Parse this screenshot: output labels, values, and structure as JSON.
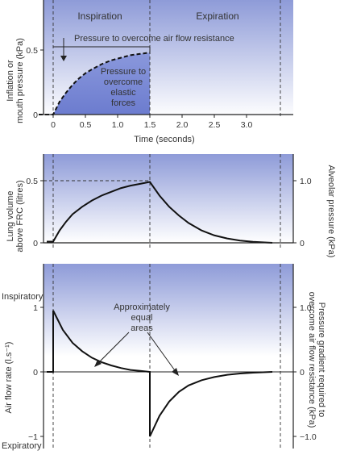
{
  "colors": {
    "band": "#9aa6dc",
    "fill": "#7f8fd6",
    "line": "#111111"
  },
  "chart_data": [
    {
      "type": "area",
      "header_labels": [
        "Inspiration",
        "Expiration"
      ],
      "xlabel": "Time (seconds)",
      "ylabel": "Inflation or mouth pressure (kPa)",
      "xticks": [
        "0",
        "0.5",
        "1.0",
        "1.5",
        "2.0",
        "2.5",
        "3.0"
      ],
      "yticks": [
        "0",
        "0.5"
      ],
      "xlim": [
        -0.1,
        3.4
      ],
      "ylim": [
        0,
        0.5
      ],
      "annotations": [
        "Pressure to overcome air flow resistance",
        "Pressure to overcome elastic forces"
      ],
      "series": [
        {
          "x": [
            0,
            0.1,
            0.2,
            0.3,
            0.4,
            0.5,
            0.6,
            0.75,
            0.9,
            1.05,
            1.2,
            1.35,
            1.5
          ],
          "y": [
            0,
            0.1,
            0.17,
            0.23,
            0.28,
            0.32,
            0.35,
            0.39,
            0.42,
            0.44,
            0.46,
            0.47,
            0.48
          ]
        }
      ]
    },
    {
      "type": "line",
      "ylabel": "Lung volume above FRC (litres)",
      "ylabel_right": "Alveolar pressure (kPa)",
      "yticks": [
        "0",
        "0.5"
      ],
      "yticks_right": [
        "0",
        "1.0"
      ],
      "ylim": [
        0,
        0.5
      ],
      "series": [
        {
          "x": [
            -0.1,
            0,
            0.1,
            0.2,
            0.3,
            0.45,
            0.6,
            0.75,
            0.9,
            1.05,
            1.2,
            1.35,
            1.5,
            1.65,
            1.8,
            1.95,
            2.1,
            2.3,
            2.5,
            2.7,
            2.9,
            3.1,
            3.4
          ],
          "y": [
            0.01,
            0.01,
            0.1,
            0.17,
            0.23,
            0.29,
            0.34,
            0.38,
            0.41,
            0.44,
            0.46,
            0.475,
            0.49,
            0.38,
            0.29,
            0.22,
            0.16,
            0.1,
            0.06,
            0.035,
            0.018,
            0.008,
            0.0
          ]
        }
      ]
    },
    {
      "type": "line",
      "ylabel": "Air flow rate (l.s⁻¹)",
      "ylabel_right": "Pressure gradient required to overcome air flow resistance (kPa)",
      "yticks": [
        "1",
        "0",
        "−1"
      ],
      "yticks_right": [
        "1.0",
        "0",
        "−1.0"
      ],
      "ylim": [
        -1,
        1
      ],
      "top_label": "Inspiratory",
      "bottom_label": "Expiratory",
      "annotation": "Approximately equal areas",
      "series": [
        {
          "x": [
            -0.1,
            0,
            0,
            0.15,
            0.3,
            0.45,
            0.6,
            0.75,
            0.9,
            1.05,
            1.2,
            1.35,
            1.5,
            1.5,
            1.65,
            1.8,
            1.95,
            2.1,
            2.3,
            2.5,
            2.7,
            2.9,
            3.1,
            3.4
          ],
          "y": [
            0,
            0,
            0.95,
            0.65,
            0.45,
            0.32,
            0.22,
            0.15,
            0.1,
            0.06,
            0.03,
            0.015,
            0,
            -1.0,
            -0.68,
            -0.46,
            -0.31,
            -0.21,
            -0.13,
            -0.08,
            -0.045,
            -0.025,
            -0.012,
            0
          ]
        }
      ]
    }
  ]
}
